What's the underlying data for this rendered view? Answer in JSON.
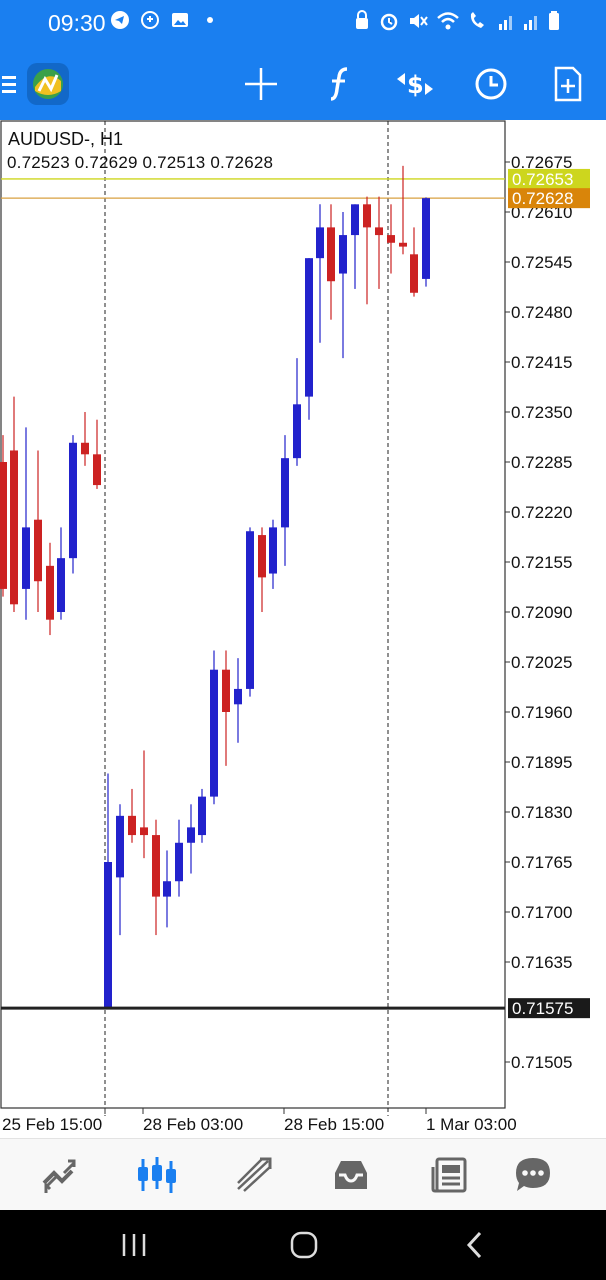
{
  "status_bar": {
    "time": "09:30",
    "left_icons": [
      "telegram-icon",
      "whatsapp-icon",
      "gallery-icon",
      "dot-icon"
    ],
    "right_icons": [
      "alarm-lock-icon",
      "alarm-icon",
      "mute-icon",
      "wifi-icon",
      "wifi-calling-icon",
      "signal-icon",
      "signal-icon",
      "battery-icon"
    ]
  },
  "toolbar": {
    "icons": [
      "menu-icon",
      "app-logo-icon",
      "crosshair-icon",
      "indicators-icon",
      "trade-icon",
      "timeframe-clock-icon",
      "new-document-icon"
    ]
  },
  "chart": {
    "symbol": "AUDUSD-, H1",
    "ohlc": "0.72523 0.72629 0.72513 0.72628",
    "y_tick_labels": [
      "0.72675",
      "0.72610",
      "0.72545",
      "0.72480",
      "0.72415",
      "0.72350",
      "0.72285",
      "0.72220",
      "0.72155",
      "0.72090",
      "0.72025",
      "0.71960",
      "0.71895",
      "0.71830",
      "0.71765",
      "0.71700",
      "0.71635",
      "0.71505"
    ],
    "x_tick_labels": [
      "25 Feb 15:00",
      "28 Feb 03:00",
      "28 Feb 15:00",
      "1 Mar 03:00"
    ],
    "price_labels": {
      "ask": "0.72653",
      "bid": "0.72628",
      "horizontal_line": "0.71575"
    },
    "colors": {
      "bull": "#2222cc",
      "bear": "#cc2222",
      "ask_bg": "#cdd61e",
      "bid_bg": "#d9850a",
      "line_label_bg": "#1a1a1a"
    }
  },
  "chart_data": {
    "type": "candlestick",
    "symbol": "AUDUSD-",
    "timeframe": "H1",
    "y_range": [
      0.7146,
      0.7271
    ],
    "candles": [
      {
        "open": 0.72285,
        "high": 0.7232,
        "low": 0.7211,
        "close": 0.7212
      },
      {
        "open": 0.723,
        "high": 0.7237,
        "low": 0.7209,
        "close": 0.721
      },
      {
        "open": 0.7212,
        "high": 0.7233,
        "low": 0.7208,
        "close": 0.722
      },
      {
        "open": 0.7221,
        "high": 0.723,
        "low": 0.7209,
        "close": 0.7213
      },
      {
        "open": 0.7215,
        "high": 0.7218,
        "low": 0.7206,
        "close": 0.7208
      },
      {
        "open": 0.7209,
        "high": 0.722,
        "low": 0.7208,
        "close": 0.7216
      },
      {
        "open": 0.7216,
        "high": 0.7232,
        "low": 0.7214,
        "close": 0.7231
      },
      {
        "open": 0.7231,
        "high": 0.7235,
        "low": 0.7228,
        "close": 0.72295
      },
      {
        "open": 0.72295,
        "high": 0.7234,
        "low": 0.7225,
        "close": 0.72255
      },
      {
        "open": 0.71575,
        "high": 0.7188,
        "low": 0.71575,
        "close": 0.71765
      },
      {
        "open": 0.71745,
        "high": 0.7184,
        "low": 0.7167,
        "close": 0.71825
      },
      {
        "open": 0.71825,
        "high": 0.7186,
        "low": 0.7179,
        "close": 0.718
      },
      {
        "open": 0.7181,
        "high": 0.7191,
        "low": 0.7177,
        "close": 0.718
      },
      {
        "open": 0.718,
        "high": 0.7182,
        "low": 0.7167,
        "close": 0.7172
      },
      {
        "open": 0.7172,
        "high": 0.7178,
        "low": 0.7168,
        "close": 0.7174
      },
      {
        "open": 0.7174,
        "high": 0.7182,
        "low": 0.7172,
        "close": 0.7179
      },
      {
        "open": 0.7179,
        "high": 0.7184,
        "low": 0.7175,
        "close": 0.7181
      },
      {
        "open": 0.718,
        "high": 0.7186,
        "low": 0.7179,
        "close": 0.7185
      },
      {
        "open": 0.7185,
        "high": 0.7204,
        "low": 0.7184,
        "close": 0.72015
      },
      {
        "open": 0.72015,
        "high": 0.7204,
        "low": 0.7189,
        "close": 0.7196
      },
      {
        "open": 0.7197,
        "high": 0.7203,
        "low": 0.7192,
        "close": 0.7199
      },
      {
        "open": 0.7199,
        "high": 0.722,
        "low": 0.7198,
        "close": 0.72195
      },
      {
        "open": 0.7219,
        "high": 0.722,
        "low": 0.7209,
        "close": 0.72135
      },
      {
        "open": 0.7214,
        "high": 0.7221,
        "low": 0.7212,
        "close": 0.722
      },
      {
        "open": 0.722,
        "high": 0.7232,
        "low": 0.7215,
        "close": 0.7229
      },
      {
        "open": 0.7229,
        "high": 0.7242,
        "low": 0.7228,
        "close": 0.7236
      },
      {
        "open": 0.7237,
        "high": 0.7255,
        "low": 0.7234,
        "close": 0.7255
      },
      {
        "open": 0.7255,
        "high": 0.7262,
        "low": 0.7244,
        "close": 0.7259
      },
      {
        "open": 0.7259,
        "high": 0.7262,
        "low": 0.7247,
        "close": 0.7252
      },
      {
        "open": 0.7253,
        "high": 0.7261,
        "low": 0.7242,
        "close": 0.7258
      },
      {
        "open": 0.7258,
        "high": 0.7262,
        "low": 0.7251,
        "close": 0.7262
      },
      {
        "open": 0.7262,
        "high": 0.7263,
        "low": 0.7249,
        "close": 0.7259
      },
      {
        "open": 0.7259,
        "high": 0.7263,
        "low": 0.7251,
        "close": 0.7258
      },
      {
        "open": 0.7258,
        "high": 0.7262,
        "low": 0.7253,
        "close": 0.7257
      },
      {
        "open": 0.7257,
        "high": 0.7267,
        "low": 0.72555,
        "close": 0.72565
      },
      {
        "open": 0.72555,
        "high": 0.7259,
        "low": 0.725,
        "close": 0.72505
      },
      {
        "open": 0.72523,
        "high": 0.72629,
        "low": 0.72513,
        "close": 0.72628
      }
    ],
    "ask": 0.72653,
    "bid": 0.72628,
    "horizontal_line": 0.71575,
    "x_labels": [
      "25 Feb 15:00",
      "28 Feb 03:00",
      "28 Feb 15:00",
      "1 Mar 03:00"
    ]
  },
  "bottom_nav": {
    "items": [
      "quotes-icon",
      "charts-icon",
      "trade-icon",
      "history-icon",
      "news-icon",
      "chat-icon"
    ],
    "active": "charts-icon"
  },
  "system_nav": {
    "items": [
      "recents-icon",
      "home-icon",
      "back-icon"
    ]
  }
}
